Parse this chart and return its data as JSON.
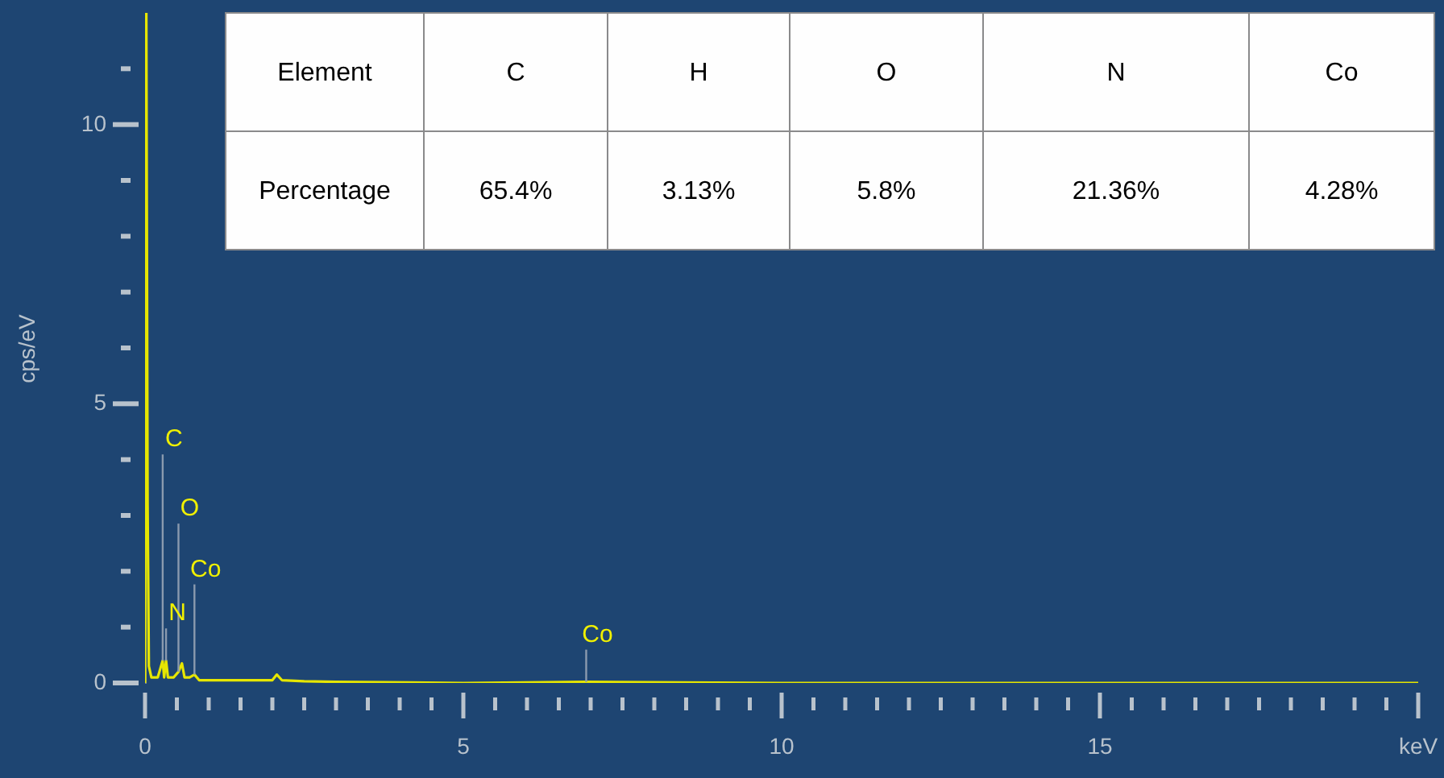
{
  "chart_data": {
    "type": "line",
    "ylabel": "cps/eV",
    "x": [
      0,
      0.02,
      0.04,
      0.06,
      0.1,
      0.2,
      0.277,
      0.3,
      0.33,
      0.36,
      0.45,
      0.525,
      0.58,
      0.62,
      0.7,
      0.776,
      0.85,
      1.0,
      1.5,
      2.0,
      2.07,
      2.15,
      2.5,
      3.0,
      5,
      6.93,
      10,
      15,
      20
    ],
    "series": [
      {
        "color": "#e6e600",
        "values": [
          0,
          12,
          3.2,
          0.3,
          0.1,
          0.1,
          0.4,
          0.1,
          0.4,
          0.1,
          0.1,
          0.2,
          0.35,
          0.1,
          0.1,
          0.15,
          0.05,
          0.05,
          0.05,
          0.05,
          0.15,
          0.05,
          0.03,
          0.02,
          0,
          0.02,
          0,
          0,
          0
        ]
      }
    ],
    "xlim": [
      0,
      20
    ],
    "ylim": [
      0,
      12
    ],
    "xticks": [
      0,
      {
        "value": 0.5,
        "label": null
      },
      {
        "value": 1,
        "label": null
      },
      {
        "value": 1.5,
        "label": null
      },
      {
        "value": 2,
        "label": null
      },
      {
        "value": 2.5,
        "label": null
      },
      {
        "value": 3,
        "label": null
      },
      {
        "value": 3.5,
        "label": null
      },
      {
        "value": 4,
        "label": null
      },
      {
        "value": 4.5,
        "label": null
      },
      5,
      {
        "value": 5.5,
        "label": null
      },
      {
        "value": 6,
        "label": null
      },
      {
        "value": 6.5,
        "label": null
      },
      {
        "value": 7,
        "label": null
      },
      {
        "value": 7.5,
        "label": null
      },
      {
        "value": 8,
        "label": null
      },
      {
        "value": 8.5,
        "label": null
      },
      {
        "value": 9,
        "label": null
      },
      {
        "value": 9.5,
        "label": null
      },
      10,
      {
        "value": 10.5,
        "label": null
      },
      {
        "value": 11,
        "label": null
      },
      {
        "value": 11.5,
        "label": null
      },
      {
        "value": 12,
        "label": null
      },
      {
        "value": 12.5,
        "label": null
      },
      {
        "value": 13,
        "label": null
      },
      {
        "value": 13.5,
        "label": null
      },
      {
        "value": 14,
        "label": null
      },
      {
        "value": 14.5,
        "label": null
      },
      15,
      {
        "value": 15.5,
        "label": null
      },
      {
        "value": 16,
        "label": null
      },
      {
        "value": 16.5,
        "label": null
      },
      {
        "value": 17,
        "label": null
      },
      {
        "value": 17.5,
        "label": null
      },
      {
        "value": 18,
        "label": null
      },
      {
        "value": 18.5,
        "label": null
      },
      {
        "value": 19,
        "label": null
      },
      {
        "value": 19.5,
        "label": null
      },
      {
        "value": 20,
        "label": "keV"
      }
    ],
    "yticks": [
      0,
      {
        "value": 1,
        "label": null
      },
      {
        "value": 2,
        "label": null
      },
      {
        "value": 3,
        "label": null
      },
      {
        "value": 4,
        "label": null
      },
      5,
      {
        "value": 6,
        "label": null
      },
      {
        "value": 7,
        "label": null
      },
      {
        "value": 8,
        "label": null
      },
      {
        "value": 9,
        "label": null
      },
      10,
      {
        "value": 11,
        "label": null
      }
    ],
    "grid": false,
    "annotations": [
      "Element",
      "C",
      "H",
      "O",
      "N",
      "Co",
      "Percentage",
      "65.4%",
      "3.13%",
      "5.8%",
      "21.36%",
      "4.28%",
      {
        "text": "C",
        "x": 0.277,
        "y": 0.4
      },
      {
        "text": "O",
        "x": 0.525,
        "y": 0.2
      },
      {
        "text": "Co",
        "x": 0.776,
        "y": 0.15
      },
      {
        "text": "N",
        "x": 0.33,
        "y": 0.4
      },
      {
        "text": "Co",
        "x": 6.93,
        "y": 0.02
      }
    ]
  }
}
